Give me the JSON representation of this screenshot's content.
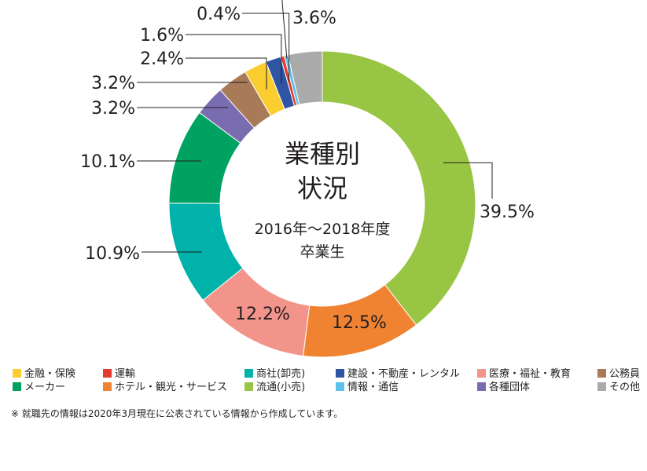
{
  "chart_data": {
    "type": "pie",
    "variant": "donut",
    "title_lines": [
      "業種別",
      "状況"
    ],
    "subtitle_lines": [
      "2016年～2018年度",
      "卒業生"
    ],
    "slices": [
      {
        "name": "流通(小売)",
        "value": 39.5,
        "label": "39.5%",
        "color": "#98c543"
      },
      {
        "name": "ホテル・観光・サービス",
        "value": 12.5,
        "label": "12.5%",
        "color": "#f08332"
      },
      {
        "name": "医療・福祉・教育",
        "value": 12.2,
        "label": "12.2%",
        "color": "#f3948b"
      },
      {
        "name": "商社(卸売)",
        "value": 10.9,
        "label": "10.9%",
        "color": "#00b2a9"
      },
      {
        "name": "メーカー",
        "value": 10.1,
        "label": "10.1%",
        "color": "#00a261"
      },
      {
        "name": "各種団体",
        "value": 3.2,
        "label": "3.2%",
        "color": "#7a6cb0"
      },
      {
        "name": "公務員",
        "value": 3.2,
        "label": "3.2%",
        "color": "#a87a57"
      },
      {
        "name": "金融・保険",
        "value": 2.4,
        "label": "2.4%",
        "color": "#fccd2e"
      },
      {
        "name": "建設・不動産・レンタル",
        "value": 1.6,
        "label": "1.6%",
        "color": "#2e54a3"
      },
      {
        "name": "運輸",
        "value": 0.4,
        "label": "0.4%",
        "color": "#e63a2e"
      },
      {
        "name": "情報・通信",
        "value": 0.4,
        "label": "",
        "color": "#5bc0ea"
      },
      {
        "name": "その他",
        "value": 3.6,
        "label": "3.6%",
        "color": "#aaaaaa"
      }
    ],
    "legend": [
      [
        "金融・保険",
        "運輸",
        "商社(卸売)",
        "建設・不動産・レンタル",
        "医療・福祉・教育",
        "公務員"
      ],
      [
        "メーカー",
        "ホテル・観光・サービス",
        "流通(小売)",
        "情報・通信",
        "各種団体",
        "その他"
      ]
    ],
    "note": "※ 就職先の情報は2020年3月現在に公表されている情報から作成しています。"
  }
}
